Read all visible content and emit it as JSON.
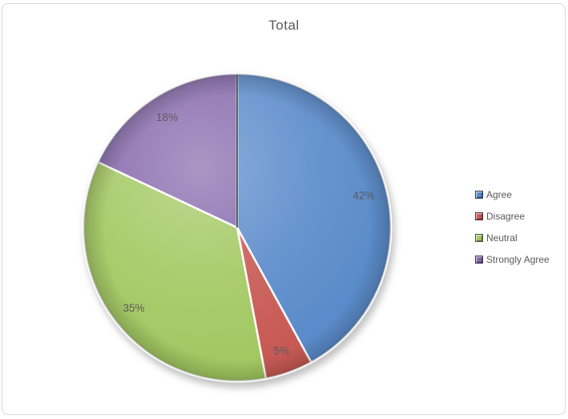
{
  "window": {
    "background_color": "#ffffff",
    "frame_border_color": "#d8d8d8"
  },
  "chart_data": {
    "type": "pie",
    "title": "Total",
    "categories": [
      "Agree",
      "Disagree",
      "Neutral",
      "Strongly Agree"
    ],
    "values": [
      42,
      5,
      35,
      18
    ],
    "labels": [
      "42%",
      "5%",
      "35%",
      "18%"
    ],
    "unit": "%",
    "colors": [
      "#5b8bca",
      "#c85a55",
      "#a3c862",
      "#8568ab"
    ],
    "start_angle_deg": 0,
    "direction": "clockwise",
    "legend_position": "right",
    "title_color": "#595959",
    "label_color": "#595959",
    "effects": "3d-bevel-with-drop-shadow, white slice gaps"
  }
}
